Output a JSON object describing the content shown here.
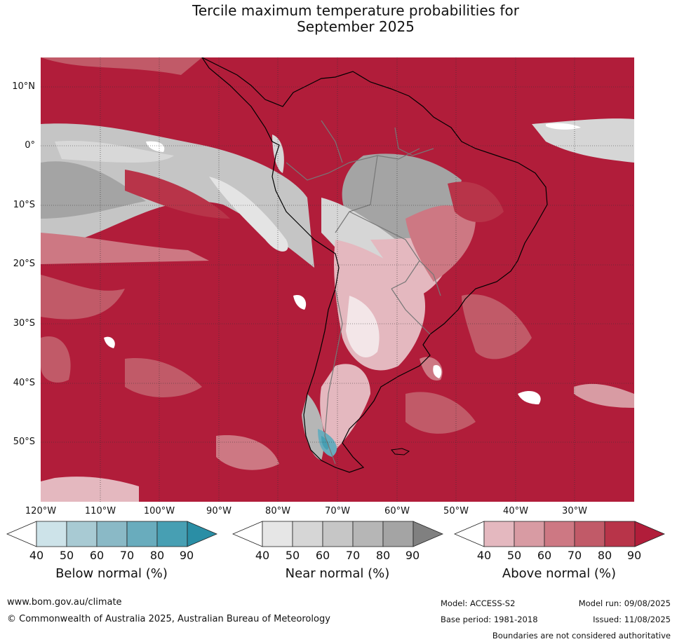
{
  "title_line1": "Tercile maximum temperature probabilities for",
  "title_line2": "September 2025",
  "lat_labels": [
    "10°N",
    "0°",
    "10°S",
    "20°S",
    "30°S",
    "40°S",
    "50°S"
  ],
  "lon_labels": [
    "120°W",
    "110°W",
    "100°W",
    "90°W",
    "80°W",
    "70°W",
    "60°W",
    "50°W",
    "40°W",
    "30°W"
  ],
  "colorbars": [
    {
      "label": "Below normal (%)",
      "ticks": [
        "40",
        "50",
        "60",
        "70",
        "80",
        "90"
      ],
      "colors": [
        "#ffffff",
        "#cde3e9",
        "#a8cad3",
        "#8ab9c6",
        "#69acbd",
        "#479fb3",
        "#2a8ea5"
      ]
    },
    {
      "label": "Near normal (%)",
      "ticks": [
        "40",
        "50",
        "60",
        "70",
        "80",
        "90"
      ],
      "colors": [
        "#ffffff",
        "#e6e6e6",
        "#d6d6d6",
        "#c6c6c6",
        "#b6b6b6",
        "#a4a4a4",
        "#808080"
      ]
    },
    {
      "label": "Above normal (%)",
      "ticks": [
        "40",
        "50",
        "60",
        "70",
        "80",
        "90"
      ],
      "colors": [
        "#ffffff",
        "#e4b8bf",
        "#d89ba3",
        "#cd7883",
        "#c15a68",
        "#b83449",
        "#b11d3a"
      ]
    }
  ],
  "footer": {
    "website": "www.bom.gov.au/climate",
    "copyright": "© Commonwealth of Australia 2025, Australian Bureau of Meteorology",
    "model": "Model: ACCESS-S2",
    "base_period": "Base period: 1981-2018",
    "model_run": "Model run: 09/08/2025",
    "issued": "Issued: 11/08/2025",
    "disclaimer": "Boundaries are not considered authoritative"
  },
  "map": {
    "extent": {
      "lon_min": -120,
      "lon_max": -20,
      "lat_min": -60,
      "lat_max": 15
    },
    "background_color": "#b11d3a",
    "gridline_color": "#333333"
  }
}
